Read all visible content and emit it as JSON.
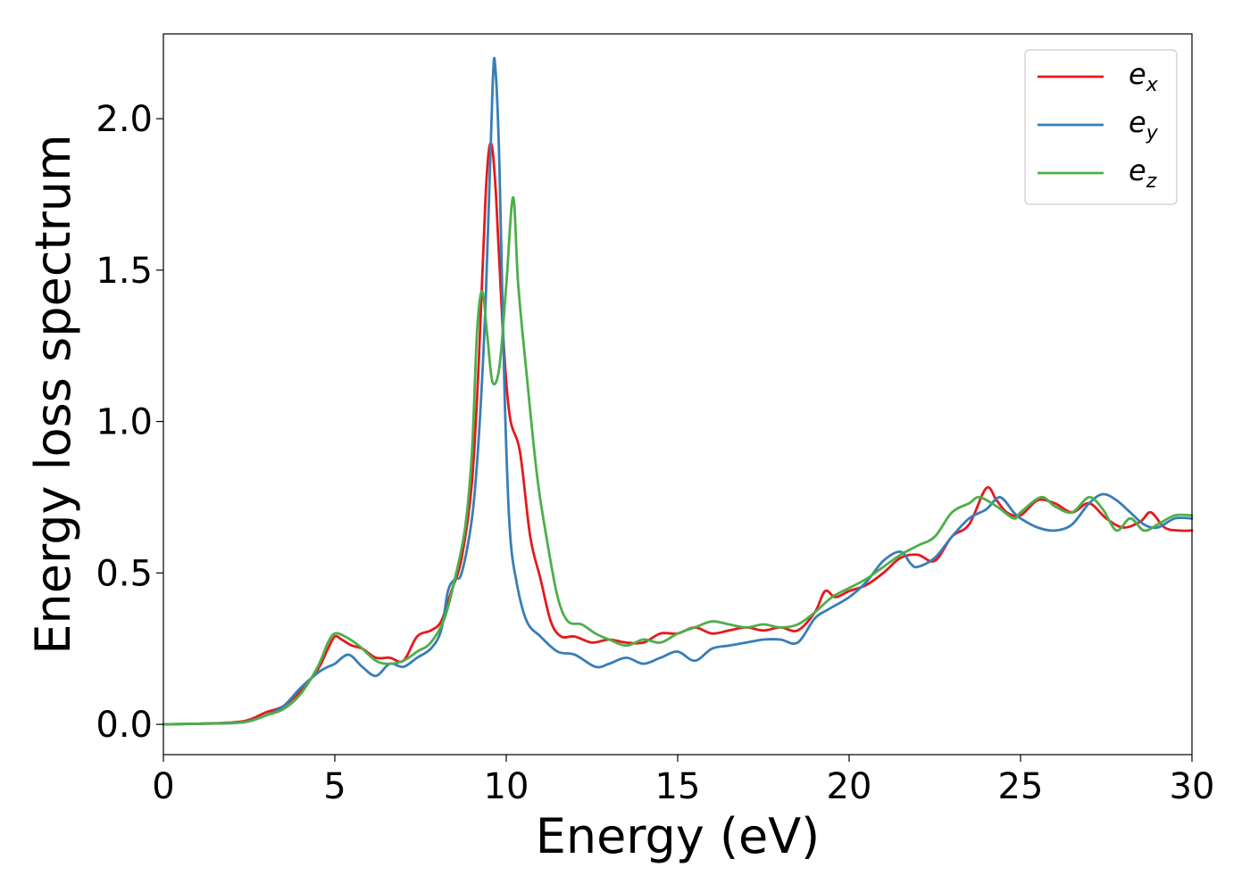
{
  "chart_data": {
    "type": "line",
    "xlabel": "Energy (eV)",
    "ylabel": "Energy loss spectrum",
    "xlim": [
      0,
      30
    ],
    "ylim": [
      -0.1,
      2.28
    ],
    "xticks": [
      0,
      5,
      10,
      15,
      20,
      25,
      30
    ],
    "xtick_labels": [
      "0",
      "5",
      "10",
      "15",
      "20",
      "25",
      "30"
    ],
    "yticks": [
      0.0,
      0.5,
      1.0,
      1.5,
      2.0
    ],
    "ytick_labels": [
      "0.0",
      "0.5",
      "1.0",
      "1.5",
      "2.0"
    ],
    "grid": false,
    "legend_position": "top-right",
    "series": [
      {
        "name": "e_x",
        "label_base": "e",
        "label_sub": "x",
        "color": "#e41a1c",
        "points": [
          [
            0,
            0
          ],
          [
            1,
            0.002
          ],
          [
            2,
            0.006
          ],
          [
            2.5,
            0.015
          ],
          [
            3,
            0.04
          ],
          [
            3.5,
            0.06
          ],
          [
            4,
            0.11
          ],
          [
            4.5,
            0.18
          ],
          [
            4.8,
            0.25
          ],
          [
            5,
            0.29
          ],
          [
            5.2,
            0.28
          ],
          [
            5.5,
            0.26
          ],
          [
            5.8,
            0.25
          ],
          [
            6.2,
            0.22
          ],
          [
            6.6,
            0.22
          ],
          [
            7,
            0.21
          ],
          [
            7.4,
            0.29
          ],
          [
            7.8,
            0.31
          ],
          [
            8.1,
            0.34
          ],
          [
            8.4,
            0.44
          ],
          [
            8.7,
            0.55
          ],
          [
            9,
            0.8
          ],
          [
            9.2,
            1.2
          ],
          [
            9.4,
            1.75
          ],
          [
            9.55,
            1.92
          ],
          [
            9.7,
            1.75
          ],
          [
            9.9,
            1.3
          ],
          [
            10.1,
            1.02
          ],
          [
            10.4,
            0.9
          ],
          [
            10.7,
            0.62
          ],
          [
            11,
            0.48
          ],
          [
            11.3,
            0.34
          ],
          [
            11.6,
            0.29
          ],
          [
            12,
            0.29
          ],
          [
            12.5,
            0.27
          ],
          [
            13,
            0.28
          ],
          [
            13.5,
            0.27
          ],
          [
            14,
            0.27
          ],
          [
            14.5,
            0.3
          ],
          [
            15,
            0.3
          ],
          [
            15.5,
            0.32
          ],
          [
            16,
            0.3
          ],
          [
            16.5,
            0.31
          ],
          [
            17,
            0.32
          ],
          [
            17.5,
            0.31
          ],
          [
            18,
            0.32
          ],
          [
            18.5,
            0.31
          ],
          [
            19,
            0.37
          ],
          [
            19.3,
            0.44
          ],
          [
            19.6,
            0.42
          ],
          [
            20,
            0.44
          ],
          [
            20.5,
            0.46
          ],
          [
            21,
            0.5
          ],
          [
            21.5,
            0.55
          ],
          [
            22,
            0.56
          ],
          [
            22.5,
            0.54
          ],
          [
            23,
            0.62
          ],
          [
            23.5,
            0.66
          ],
          [
            24,
            0.78
          ],
          [
            24.3,
            0.74
          ],
          [
            24.6,
            0.7
          ],
          [
            25,
            0.69
          ],
          [
            25.5,
            0.74
          ],
          [
            26,
            0.73
          ],
          [
            26.5,
            0.7
          ],
          [
            27,
            0.73
          ],
          [
            27.5,
            0.68
          ],
          [
            28,
            0.65
          ],
          [
            28.5,
            0.67
          ],
          [
            28.8,
            0.7
          ],
          [
            29.2,
            0.65
          ],
          [
            29.6,
            0.64
          ],
          [
            30,
            0.64
          ]
        ]
      },
      {
        "name": "e_y",
        "label_base": "e",
        "label_sub": "y",
        "color": "#377eb8",
        "points": [
          [
            0,
            0
          ],
          [
            1,
            0.002
          ],
          [
            2,
            0.004
          ],
          [
            2.5,
            0.01
          ],
          [
            3,
            0.03
          ],
          [
            3.5,
            0.06
          ],
          [
            4,
            0.12
          ],
          [
            4.5,
            0.17
          ],
          [
            4.8,
            0.19
          ],
          [
            5,
            0.2
          ],
          [
            5.4,
            0.23
          ],
          [
            5.8,
            0.19
          ],
          [
            6.2,
            0.16
          ],
          [
            6.6,
            0.2
          ],
          [
            7,
            0.19
          ],
          [
            7.4,
            0.22
          ],
          [
            7.8,
            0.25
          ],
          [
            8.1,
            0.31
          ],
          [
            8.3,
            0.44
          ],
          [
            8.5,
            0.48
          ],
          [
            8.7,
            0.5
          ],
          [
            9,
            0.68
          ],
          [
            9.2,
            0.95
          ],
          [
            9.4,
            1.4
          ],
          [
            9.6,
            2.1
          ],
          [
            9.68,
            2.17
          ],
          [
            9.8,
            1.85
          ],
          [
            9.95,
            1.1
          ],
          [
            10.1,
            0.65
          ],
          [
            10.3,
            0.47
          ],
          [
            10.6,
            0.34
          ],
          [
            11,
            0.29
          ],
          [
            11.5,
            0.24
          ],
          [
            12,
            0.23
          ],
          [
            12.6,
            0.19
          ],
          [
            13,
            0.2
          ],
          [
            13.5,
            0.22
          ],
          [
            14,
            0.2
          ],
          [
            14.5,
            0.22
          ],
          [
            15,
            0.24
          ],
          [
            15.5,
            0.21
          ],
          [
            16,
            0.25
          ],
          [
            16.5,
            0.26
          ],
          [
            17,
            0.27
          ],
          [
            17.5,
            0.28
          ],
          [
            18,
            0.28
          ],
          [
            18.5,
            0.27
          ],
          [
            19,
            0.35
          ],
          [
            19.4,
            0.38
          ],
          [
            20,
            0.42
          ],
          [
            20.5,
            0.47
          ],
          [
            21,
            0.54
          ],
          [
            21.5,
            0.57
          ],
          [
            21.8,
            0.53
          ],
          [
            22,
            0.52
          ],
          [
            22.5,
            0.55
          ],
          [
            23,
            0.62
          ],
          [
            23.5,
            0.68
          ],
          [
            24,
            0.71
          ],
          [
            24.4,
            0.75
          ],
          [
            24.8,
            0.7
          ],
          [
            25,
            0.68
          ],
          [
            25.5,
            0.65
          ],
          [
            26,
            0.64
          ],
          [
            26.5,
            0.66
          ],
          [
            27,
            0.73
          ],
          [
            27.4,
            0.76
          ],
          [
            27.8,
            0.74
          ],
          [
            28.2,
            0.7
          ],
          [
            28.6,
            0.66
          ],
          [
            29,
            0.65
          ],
          [
            29.5,
            0.68
          ],
          [
            30,
            0.68
          ]
        ]
      },
      {
        "name": "e_z",
        "label_base": "e",
        "label_sub": "z",
        "color": "#4daf4a",
        "points": [
          [
            0,
            0
          ],
          [
            1,
            0.002
          ],
          [
            2,
            0.004
          ],
          [
            2.5,
            0.01
          ],
          [
            3,
            0.03
          ],
          [
            3.5,
            0.05
          ],
          [
            4,
            0.1
          ],
          [
            4.5,
            0.19
          ],
          [
            4.8,
            0.27
          ],
          [
            5,
            0.3
          ],
          [
            5.3,
            0.29
          ],
          [
            5.7,
            0.26
          ],
          [
            6.2,
            0.21
          ],
          [
            6.6,
            0.2
          ],
          [
            7,
            0.21
          ],
          [
            7.4,
            0.24
          ],
          [
            7.8,
            0.27
          ],
          [
            8.2,
            0.35
          ],
          [
            8.5,
            0.48
          ],
          [
            8.8,
            0.65
          ],
          [
            9,
            0.9
          ],
          [
            9.15,
            1.3
          ],
          [
            9.3,
            1.43
          ],
          [
            9.45,
            1.28
          ],
          [
            9.6,
            1.13
          ],
          [
            9.8,
            1.18
          ],
          [
            10,
            1.45
          ],
          [
            10.2,
            1.74
          ],
          [
            10.35,
            1.45
          ],
          [
            10.6,
            1.15
          ],
          [
            10.9,
            0.82
          ],
          [
            11.2,
            0.6
          ],
          [
            11.5,
            0.42
          ],
          [
            11.8,
            0.34
          ],
          [
            12.2,
            0.33
          ],
          [
            12.6,
            0.3
          ],
          [
            13,
            0.28
          ],
          [
            13.5,
            0.26
          ],
          [
            14,
            0.28
          ],
          [
            14.5,
            0.27
          ],
          [
            15,
            0.3
          ],
          [
            15.5,
            0.32
          ],
          [
            16,
            0.34
          ],
          [
            16.5,
            0.33
          ],
          [
            17,
            0.32
          ],
          [
            17.5,
            0.33
          ],
          [
            18,
            0.32
          ],
          [
            18.5,
            0.33
          ],
          [
            19,
            0.37
          ],
          [
            19.5,
            0.42
          ],
          [
            20,
            0.45
          ],
          [
            20.5,
            0.48
          ],
          [
            21,
            0.52
          ],
          [
            21.5,
            0.56
          ],
          [
            22,
            0.59
          ],
          [
            22.5,
            0.62
          ],
          [
            23,
            0.7
          ],
          [
            23.5,
            0.73
          ],
          [
            23.8,
            0.75
          ],
          [
            24.3,
            0.72
          ],
          [
            24.8,
            0.68
          ],
          [
            25,
            0.7
          ],
          [
            25.6,
            0.75
          ],
          [
            26,
            0.72
          ],
          [
            26.5,
            0.7
          ],
          [
            27,
            0.75
          ],
          [
            27.4,
            0.71
          ],
          [
            27.8,
            0.64
          ],
          [
            28.2,
            0.68
          ],
          [
            28.6,
            0.64
          ],
          [
            29,
            0.66
          ],
          [
            29.5,
            0.69
          ],
          [
            30,
            0.69
          ]
        ]
      }
    ]
  }
}
